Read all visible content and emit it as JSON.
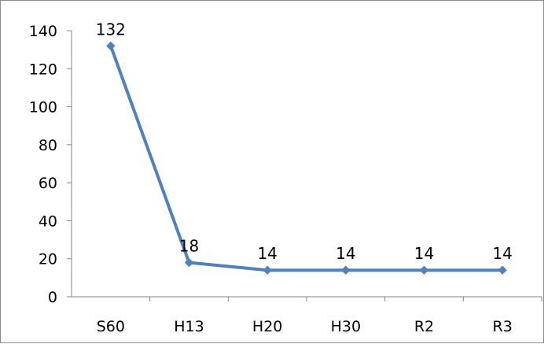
{
  "chart_data": {
    "type": "line",
    "title": "",
    "xlabel": "",
    "ylabel": "",
    "categories": [
      "S60",
      "H13",
      "H20",
      "H30",
      "R2",
      "R3"
    ],
    "series": [
      {
        "values": [
          132,
          18,
          14,
          14,
          14,
          14
        ],
        "color": "#4f81bd",
        "marker": "diamond"
      }
    ],
    "data_labels": [
      "132",
      "18",
      "14",
      "14",
      "14",
      "14"
    ],
    "ylim": [
      0,
      140
    ],
    "yticks": [
      0,
      20,
      40,
      60,
      80,
      100,
      120,
      140
    ],
    "ytick_labels": [
      "0",
      "20",
      "40",
      "60",
      "80",
      "100",
      "120",
      "140"
    ],
    "grid": false,
    "legend": "none"
  }
}
